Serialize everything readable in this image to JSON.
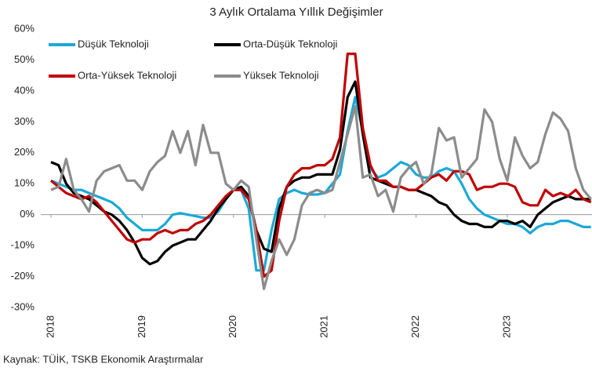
{
  "chart_data": {
    "type": "line",
    "title": "3 Aylık Ortalama Yıllık Değişimler",
    "source": "Kaynak: TÜİK, TSKB Ekonomik Araştırmalar",
    "categories": [
      "2018",
      null,
      null,
      null,
      null,
      null,
      null,
      null,
      null,
      null,
      null,
      null,
      "2019",
      null,
      null,
      null,
      null,
      null,
      null,
      null,
      null,
      null,
      null,
      null,
      "2020",
      null,
      null,
      null,
      null,
      null,
      null,
      null,
      null,
      null,
      null,
      null,
      "2021",
      null,
      null,
      null,
      null,
      null,
      null,
      null,
      null,
      null,
      null,
      null,
      "2022",
      null,
      null,
      null,
      null,
      null,
      null,
      null,
      null,
      null,
      null,
      null,
      "2023",
      null,
      null,
      null,
      null,
      null,
      null,
      null,
      null,
      null,
      null,
      null
    ],
    "series": [
      {
        "name": "Düşük Teknoloji",
        "color": "#1ca9d6",
        "values": [
          11,
          10,
          9,
          8,
          8,
          7,
          6,
          5,
          4,
          2,
          -1,
          -3,
          -5,
          -5,
          -5,
          -3,
          0,
          0.5,
          0,
          -0.5,
          -1,
          -1,
          1,
          5,
          8,
          8,
          2,
          -18,
          -18,
          -5,
          5,
          7,
          8,
          7,
          6.5,
          6.5,
          7,
          10,
          13,
          27,
          38,
          27,
          15,
          12,
          13,
          15,
          17,
          16,
          13,
          12,
          12,
          14,
          15,
          14,
          10,
          5,
          2,
          0,
          -1,
          -2,
          -3,
          -3,
          -4,
          -6,
          -4,
          -3,
          -3,
          -2,
          -2,
          -3,
          -4,
          -4
        ]
      },
      {
        "name": "Orta-Düşük Teknoloji",
        "color": "#000000",
        "values": [
          17,
          16,
          10,
          7,
          6,
          5,
          3,
          1,
          0,
          -2,
          -5,
          -9,
          -14,
          -16,
          -15,
          -12,
          -10,
          -9,
          -8,
          -8,
          -5,
          -2,
          2,
          5,
          8,
          9,
          6,
          -5,
          -11,
          -12,
          2,
          9,
          11,
          12,
          12,
          13,
          13,
          13,
          21,
          38,
          43,
          26,
          12,
          11,
          10,
          9,
          9,
          8,
          8,
          7,
          6,
          4,
          3,
          0,
          -2,
          -3,
          -3,
          -4,
          -4,
          -2,
          -2,
          -3,
          -2,
          -4,
          0,
          2,
          4,
          5,
          6,
          5,
          5,
          5
        ]
      },
      {
        "name": "Orta-Yüksek Teknoloji",
        "color": "#c00000",
        "values": [
          11,
          9,
          7,
          6,
          5,
          6,
          4,
          1,
          -2,
          -5,
          -8,
          -9,
          -8,
          -8,
          -6,
          -5,
          -6,
          -5,
          -5,
          -3,
          -2,
          0,
          3,
          6,
          8,
          8,
          5,
          -5,
          -20,
          -18,
          -2,
          9,
          13,
          15,
          15,
          16,
          16,
          18,
          25,
          52,
          52,
          28,
          16,
          11,
          11,
          9,
          9,
          8,
          8,
          10,
          12,
          13,
          11,
          14,
          14,
          13,
          8,
          9,
          9,
          10,
          10,
          9,
          4,
          3,
          3,
          8,
          6,
          7,
          6,
          8,
          5,
          4
        ]
      },
      {
        "name": "Yüksek Teknoloji",
        "color": "#8c8c8c",
        "values": [
          8,
          9,
          18,
          8,
          5,
          1,
          11,
          14,
          15,
          16,
          11,
          11,
          8,
          14,
          17,
          19,
          27,
          20,
          27,
          16,
          29,
          20,
          20,
          10,
          8,
          11,
          9,
          -8,
          -24,
          -15,
          -8,
          -13,
          -8,
          3,
          7,
          8,
          7,
          8,
          17,
          26,
          35,
          12,
          13,
          6,
          8,
          1,
          12,
          15,
          17,
          10,
          13,
          28,
          24,
          25,
          12,
          15,
          18,
          34,
          30,
          18,
          11,
          25,
          19,
          15,
          17,
          26,
          33,
          31,
          27,
          15,
          8,
          5
        ]
      }
    ],
    "ylim": [
      -30,
      60
    ],
    "yticks": [
      {
        "value": -30,
        "label": "-30%"
      },
      {
        "value": -20,
        "label": "-20%"
      },
      {
        "value": -10,
        "label": "-10%"
      },
      {
        "value": 0,
        "label": "0%"
      },
      {
        "value": 10,
        "label": "10%"
      },
      {
        "value": 20,
        "label": "20%"
      },
      {
        "value": 30,
        "label": "30%"
      },
      {
        "value": 40,
        "label": "40%"
      },
      {
        "value": 50,
        "label": "50%"
      },
      {
        "value": 60,
        "label": "60%"
      }
    ],
    "grid": false
  }
}
